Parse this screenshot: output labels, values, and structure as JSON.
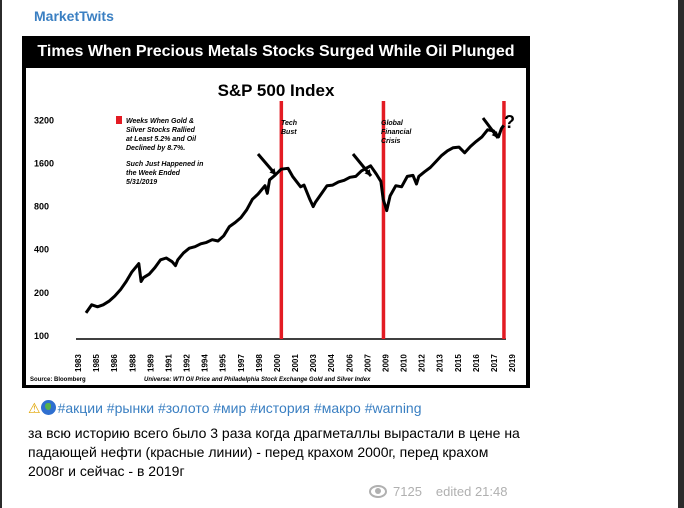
{
  "post": {
    "channel_name": "MarketTwits",
    "tags_line": "#акции #рынки #золото #мир #история #макро #warning",
    "text": "за всю историю всего было 3 раза когда драгметаллы вырастали в цене на падающей нефти (красные линии) - перед крахом 2000г, перед крахом 2008г и сейчас - в 2019г",
    "views": "7125",
    "edited_label": "edited 21:48",
    "emoji_icons": [
      "warning-icon",
      "globe-icon"
    ]
  },
  "chart_data": {
    "type": "line",
    "banner_title": "Times When Precious Metals Stocks Surged While Oil Plunged",
    "title": "S&P 500 Index",
    "y_scale": "log",
    "y_ticks": [
      100,
      200,
      400,
      800,
      1600,
      3200
    ],
    "x_ticks": [
      "1983",
      "1985",
      "1986",
      "1988",
      "1989",
      "1991",
      "1992",
      "1994",
      "1995",
      "1997",
      "1998",
      "2000",
      "2001",
      "2003",
      "2004",
      "2006",
      "2007",
      "2009",
      "2010",
      "2012",
      "2013",
      "2015",
      "2016",
      "2017",
      "2019"
    ],
    "legend_text": "Weeks When Gold & Silver Stocks Rallied at Least 5.2% and Oil Declined by 8.7%.",
    "legend_note": "Such Just Happened in the Week Ended 5/31/2019",
    "annotations": [
      "Tech Bust",
      "Global Financial Crisis",
      "?"
    ],
    "source": "Source: Bloomberg",
    "universe": "Universe: WTI Oil Price and Philadelphia Stock Exchange Gold and Silver Index",
    "highlight_years": [
      2000,
      2008.9,
      2019.4
    ],
    "highlight_color": "#e31b23",
    "series": [
      {
        "x": [
          1983.0,
          1983.5,
          1984.0,
          1984.5,
          1985.0,
          1985.5,
          1986.0,
          1986.5,
          1987.0,
          1987.6,
          1987.8,
          1988.0,
          1988.5,
          1989.0,
          1989.5,
          1990.0,
          1990.5,
          1990.8,
          1991.0,
          1991.5,
          1992.0,
          1992.5,
          1993.0,
          1993.5,
          1994.0,
          1994.5,
          1995.0,
          1995.5,
          1996.0,
          1996.5,
          1997.0,
          1997.5,
          1998.0,
          1998.6,
          1998.8,
          1999.0,
          1999.5,
          2000.0,
          2000.6,
          2001.0,
          2001.7,
          2002.0,
          2002.5,
          2002.8,
          2003.0,
          2003.5,
          2004.0,
          2004.5,
          2005.0,
          2005.5,
          2006.0,
          2006.5,
          2007.0,
          2007.8,
          2008.3,
          2008.7,
          2008.9,
          2009.2,
          2009.5,
          2010.0,
          2010.5,
          2011.0,
          2011.5,
          2011.8,
          2012.0,
          2012.5,
          2013.0,
          2013.5,
          2014.0,
          2014.5,
          2015.0,
          2015.5,
          2016.0,
          2016.5,
          2017.0,
          2017.5,
          2018.0,
          2018.5,
          2018.95,
          2019.2,
          2019.4
        ],
        "values": [
          145,
          165,
          160,
          165,
          175,
          190,
          210,
          240,
          280,
          320,
          240,
          255,
          270,
          300,
          340,
          350,
          330,
          310,
          340,
          380,
          410,
          420,
          440,
          450,
          470,
          460,
          500,
          580,
          620,
          670,
          760,
          900,
          980,
          1120,
          990,
          1230,
          1330,
          1460,
          1480,
          1300,
          1100,
          1130,
          900,
          800,
          860,
          980,
          1120,
          1130,
          1190,
          1220,
          1280,
          1300,
          1420,
          1540,
          1350,
          1200,
          900,
          750,
          950,
          1120,
          1100,
          1300,
          1320,
          1150,
          1300,
          1400,
          1500,
          1650,
          1820,
          1960,
          2060,
          2080,
          1900,
          2100,
          2280,
          2450,
          2750,
          2700,
          2450,
          2800,
          2950
        ]
      }
    ]
  }
}
